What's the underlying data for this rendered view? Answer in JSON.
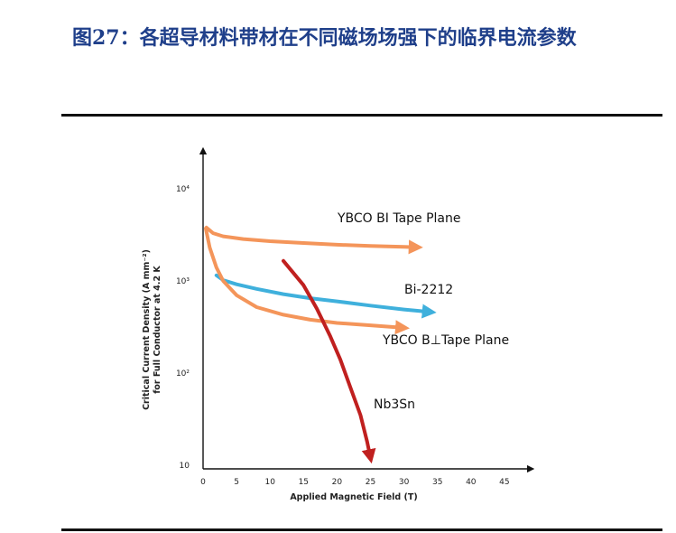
{
  "figure_title": "图27：各超导材料带材在不同磁场场强下的临界电流参数",
  "chart_data": {
    "type": "line",
    "xlabel": "Applied Magnetic Field (T)",
    "ylabel_line1": "Critical Current Density (A mm⁻²)",
    "ylabel_line2": "for Full Conductor at 4.2 K",
    "x_ticks": [
      "0",
      "5",
      "10",
      "15",
      "20",
      "25",
      "30",
      "35",
      "40",
      "45"
    ],
    "y_ticks": [
      {
        "value": 10,
        "label": "10"
      },
      {
        "value": 100,
        "label": "10²"
      },
      {
        "value": 1000,
        "label": "10³"
      },
      {
        "value": 10000,
        "label": "10⁴"
      }
    ],
    "y_scale": "log",
    "xlim": [
      0,
      48
    ],
    "ylim": [
      10,
      15000
    ],
    "grid": false,
    "series": [
      {
        "name": "YBCO BI Tape Plane",
        "color": "#f4955a",
        "x": [
          0.5,
          1.5,
          3,
          6,
          10,
          15,
          20,
          25,
          30,
          32
        ],
        "y": [
          3800,
          3300,
          3050,
          2850,
          2700,
          2580,
          2470,
          2400,
          2350,
          2320
        ]
      },
      {
        "name": "Bi-2212",
        "color": "#3fb0dc",
        "x": [
          2,
          3,
          5,
          8,
          12,
          16,
          20,
          25,
          30,
          34
        ],
        "y": [
          1150,
          1020,
          920,
          820,
          720,
          650,
          600,
          540,
          490,
          460
        ]
      },
      {
        "name": "YBCO B⊥Tape Plane",
        "color": "#f4955a",
        "x": [
          0.4,
          1,
          2,
          3,
          5,
          8,
          12,
          16,
          20,
          25,
          30
        ],
        "y": [
          3700,
          2300,
          1400,
          1000,
          700,
          520,
          430,
          380,
          350,
          330,
          310
        ]
      },
      {
        "name": "Nb3Sn",
        "color": "#c0201f",
        "x": [
          12,
          15,
          17,
          19,
          20.5,
          22,
          23.5,
          24.5,
          25
        ],
        "y": [
          1650,
          900,
          500,
          250,
          140,
          70,
          35,
          18,
          12
        ]
      }
    ]
  }
}
